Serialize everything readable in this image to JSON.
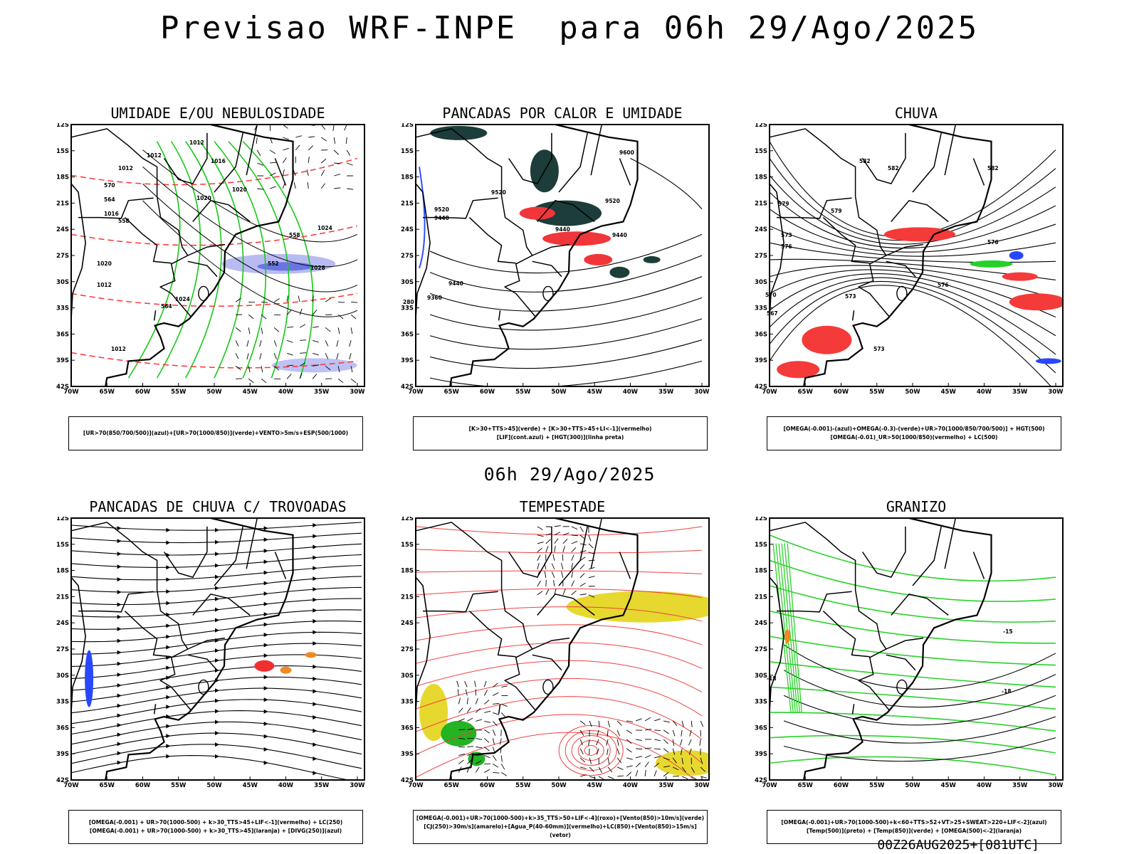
{
  "header": {
    "title": "Previsao WRF-INPE  para 06h 29/Ago/2025",
    "subtitle": "06h 29/Ago/2025",
    "footer": "00Z26AUG2025+[081UTC]"
  },
  "axes": {
    "lat_ticks": [
      "12S",
      "15S",
      "18S",
      "21S",
      "24S",
      "27S",
      "30S",
      "33S",
      "36S",
      "39S",
      "42S"
    ],
    "lon_ticks": [
      "70W",
      "65W",
      "60W",
      "55W",
      "50W",
      "45W",
      "40W",
      "35W",
      "30W"
    ]
  },
  "panels": [
    {
      "title": "UMIDADE E/OU NEBULOSIDADE",
      "legend": [
        "[UR>70(850/700/500)](azul)+[UR>70(1000/850)](verde)+VENTO>5m/s+ESP(500/1000)"
      ],
      "contour_labels": [
        "1012",
        "1012",
        "1012",
        "1016",
        "1020",
        "1020",
        "1024",
        "1028",
        "1012",
        "1024",
        "1012",
        "1016",
        "1020",
        "570",
        "564",
        "564",
        "558",
        "558",
        "552"
      ],
      "colors": {
        "high_humidity": "#7b83e8",
        "low_humidity": "#19c819",
        "thickness": "#ff3333"
      }
    },
    {
      "title": "PANCADAS POR CALOR E UMIDADE",
      "legend": [
        "[K>30+TTS>45](verde) + [K>30+TTS>45+LI<-1](vermelho)",
        "[LIF](cont.azul) + [HGT(300)](linha preta)"
      ],
      "contour_labels": [
        "9600",
        "9520",
        "9520",
        "9520",
        "9440",
        "9440",
        "9440",
        "9440",
        "9360",
        "280"
      ],
      "colors": {
        "convective": "#1d3d3a",
        "severe": "#f0363a",
        "lif": "#3050ff"
      }
    },
    {
      "title": "CHUVA",
      "legend": [
        "[OMEGA(-0.001)-(azul)+OMEGA(-0.3)-(verde)+UR>70(1000/850/700/500)] + HGT(500)",
        "[OMEGA(-0.01)_UR>50(1000/850)(vermelho) + LC(500)"
      ],
      "contour_labels": [
        "582",
        "582",
        "582",
        "579",
        "579",
        "576",
        "576",
        "573",
        "573",
        "570",
        "567",
        "576",
        "573"
      ],
      "colors": {
        "rain": "#f53a3a",
        "blue": "#2848ff",
        "green": "#24d12a"
      }
    },
    {
      "title": "PANCADAS DE CHUVA C/ TROVOADAS",
      "legend": [
        "[OMEGA(-0.001) + UR>70(1000-500) + k>30_TTS>45+LIF<-1](vermelho) + LC(250)",
        "[OMEGA(-0.001) + UR>70(1000-500) + k>30_TTS>45](laranja) + [DIVG(250)](azul)"
      ],
      "contour_labels": [],
      "colors": {
        "red": "#f03030",
        "orange": "#f08a20",
        "blue": "#2848ff"
      }
    },
    {
      "title": "TEMPESTADE",
      "legend": [
        "[OMEGA(-0.001)+UR>70(1000-500)+k>35_TTS>50+LIF<-4](roxo)+[Vento(850)>10m/s](verde)",
        "[CJ(250)>30m/s](amarelo)+[Agua_P(40-60mm)](vermelho)+LC(850)+[Vento(850)>15m/s](vetor)"
      ],
      "contour_labels": [],
      "colors": {
        "jet": "#e6d82e",
        "wind": "#23b323",
        "lines": "#f04040"
      }
    },
    {
      "title": "GRANIZO",
      "legend": [
        "[OMEGA(-0.001)+UR>70(1000-500)+k<60+TTS>52+VT>25+SWEAT>220+LIF<-2](azul)",
        "[Temp(500)](preto) + [Temp(850)](verde) + [OMEGA(500)<-2](laranja)"
      ],
      "contour_labels": [
        "-15",
        "-18",
        "-18"
      ],
      "colors": {
        "t850": "#2bd12b",
        "t500": "#000000",
        "omega": "#f08a20"
      }
    }
  ]
}
